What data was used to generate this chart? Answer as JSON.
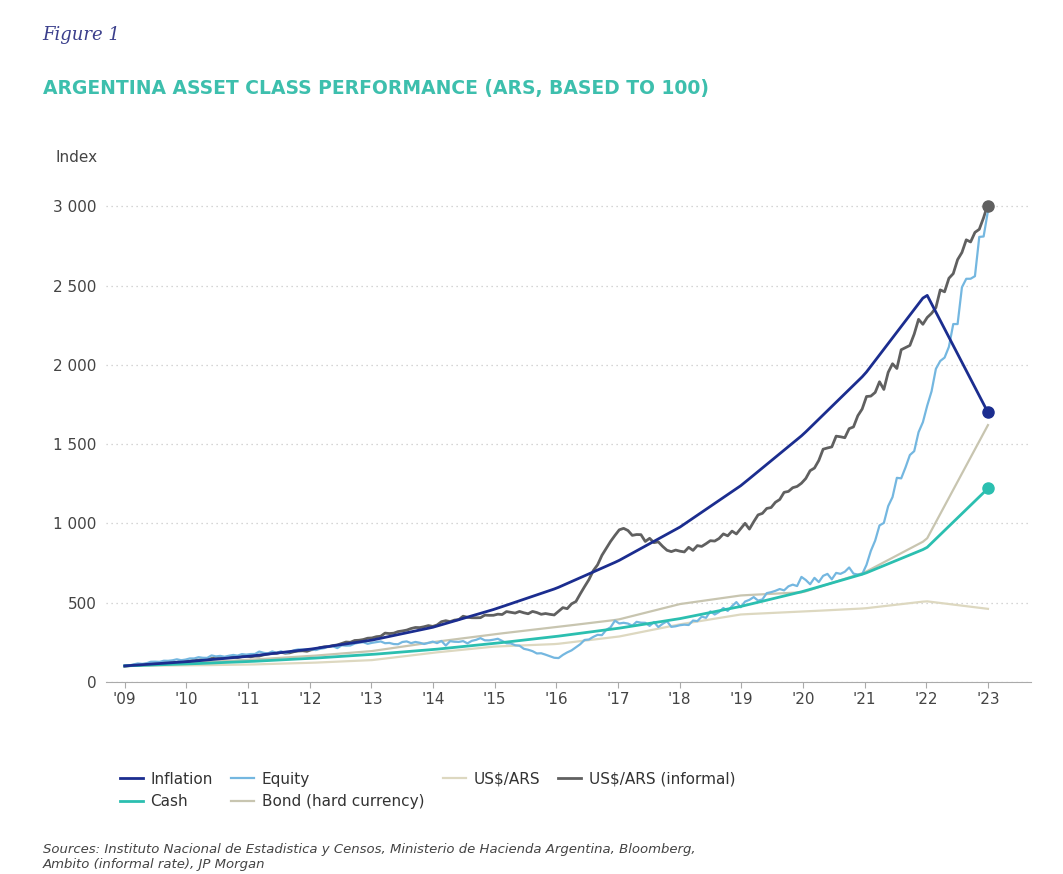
{
  "title_fig": "Figure 1",
  "title_main": "ARGENTINA ASSET CLASS PERFORMANCE (ARS, BASED TO 100)",
  "ylabel": "Index",
  "title_fig_color": "#3B3F8C",
  "title_main_color": "#3DBFAD",
  "source_text": "Sources: Instituto Nacional de Estadistica y Censos, Ministerio de Hacienda Argentina, Bloomberg,\nAmbito (informal rate), JP Morgan",
  "xtick_labels": [
    "'09",
    "'10",
    "'11",
    "'12",
    "'13",
    "'14",
    "'15",
    "'16",
    "'17",
    "'18",
    "'19",
    "'20",
    "'21",
    "'22",
    "'23"
  ],
  "ytick_values": [
    0,
    500,
    1000,
    1500,
    2000,
    2500,
    3000
  ],
  "ytick_labels": [
    "0",
    "500",
    "1 000",
    "1 500",
    "2 000",
    "2 500",
    "3 000"
  ],
  "ylim": [
    0,
    3200
  ],
  "inflation_color": "#1B2D8F",
  "cash_color": "#2BBFB0",
  "equity_color": "#74B7E0",
  "bond_color": "#C8C5B0",
  "usd_ars_color": "#DDD8C0",
  "usd_informal_color": "#606060",
  "background_color": "#FFFFFF",
  "grid_color": "#C8C8C8",
  "legend_labels": [
    "Inflation",
    "Cash",
    "Equity",
    "Bond (hard currency)",
    "US$/ARS",
    "US$/ARS (informal)"
  ]
}
